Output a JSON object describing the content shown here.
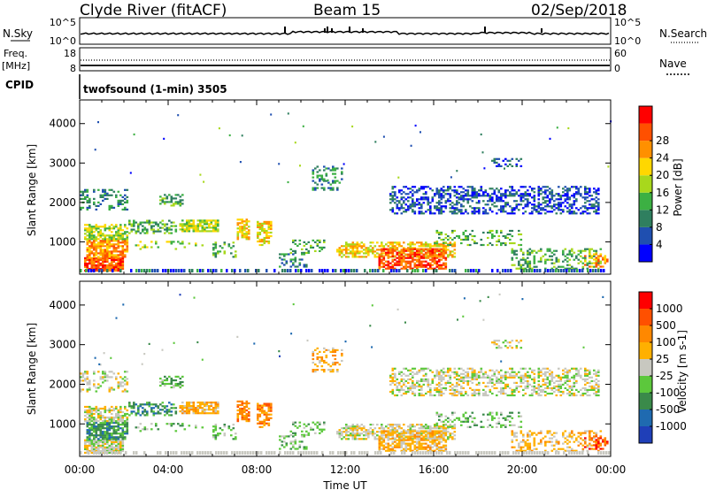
{
  "header": {
    "station": "Clyde River (fitACF)",
    "beam": "Beam 15",
    "date": "02/Sep/2018"
  },
  "status_panels": {
    "nsky_label": "N.Sky",
    "nsearch_label": "N.Search",
    "freq_label": "Freq.",
    "freq_unit": "[MHz]",
    "nave_label": "Nave",
    "cpid_label": "CPID",
    "cpid_value": "twofsound (1-min) 3505",
    "noise_ticks_left": [
      "10^5",
      "10^0"
    ],
    "noise_ticks_right": [
      "10^5",
      "10^0"
    ],
    "freq_ticks_left": [
      "18",
      "8"
    ],
    "nave_ticks_right": [
      "60",
      "0"
    ]
  },
  "chart_data": [
    {
      "type": "heatmap",
      "name": "power",
      "xlabel": "",
      "ylabel": "Slant Range [km]",
      "x_range_hours": [
        0,
        24
      ],
      "y_range_km": [
        180,
        4600
      ],
      "y_ticks": [
        "1000",
        "2000",
        "3000",
        "4000"
      ],
      "x_ticks": [
        "00:00",
        "04:00",
        "08:00",
        "12:00",
        "16:00",
        "20:00",
        "00:00"
      ],
      "colorbar_label": "Power [dB]",
      "colorbar_ticks": [
        "4",
        "8",
        "12",
        "16",
        "20",
        "24",
        "28"
      ],
      "colors": [
        "#0000ff",
        "#1f4fb0",
        "#2f7f5f",
        "#3cb043",
        "#a8d81c",
        "#ffd700",
        "#ff9000",
        "#ff5000",
        "#ff0000"
      ]
    },
    {
      "type": "heatmap",
      "name": "velocity",
      "xlabel": "Time UT",
      "ylabel": "Slant Range [km]",
      "x_range_hours": [
        0,
        24
      ],
      "y_range_km": [
        180,
        4600
      ],
      "y_ticks": [
        "1000",
        "2000",
        "3000",
        "4000"
      ],
      "x_ticks": [
        "00:00",
        "04:00",
        "08:00",
        "12:00",
        "16:00",
        "20:00",
        "00:00"
      ],
      "colorbar_label": "Velocity [m s-1]",
      "colorbar_ticks": [
        "1000",
        "500",
        "100",
        "25",
        "-25",
        "-100",
        "-500",
        "-1000"
      ],
      "colors": [
        "#1f3fb8",
        "#1f6ab0",
        "#3a8a4a",
        "#5cc83c",
        "#c8c8c0",
        "#ffb000",
        "#ff8800",
        "#ff5000",
        "#ff0000"
      ]
    }
  ]
}
